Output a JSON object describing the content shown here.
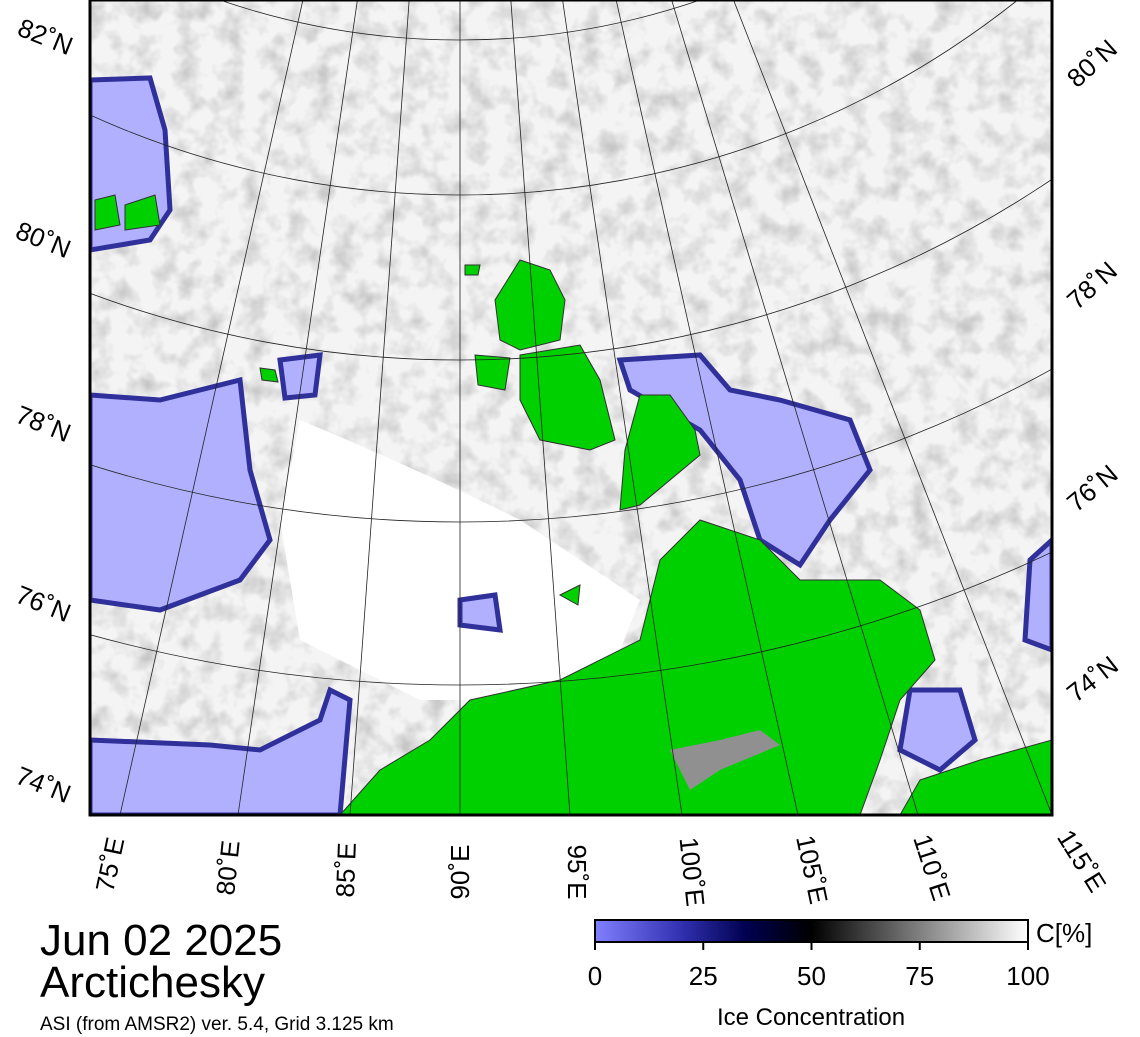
{
  "map": {
    "lat_labels_left": [
      "82˚N",
      "80˚N",
      "78˚N",
      "76˚N",
      "74˚N"
    ],
    "lat_labels_right": [
      "80˚N",
      "78˚N",
      "76˚N",
      "74˚N"
    ],
    "lon_labels": [
      "75˚E",
      "80˚E",
      "85˚E",
      "90˚E",
      "95˚E",
      "100˚E",
      "105˚E",
      "110˚E",
      "115˚E"
    ]
  },
  "caption": {
    "date": "Jun 02 2025",
    "region": "Arctichesky",
    "source": "ASI (from AMSR2) ver. 5.4,  Grid 3.125 km"
  },
  "colorbar": {
    "title": "Ice Concentration",
    "unit": "C[%]",
    "range": [
      0,
      100
    ],
    "ticks": [
      0,
      25,
      50,
      75,
      100
    ]
  }
}
